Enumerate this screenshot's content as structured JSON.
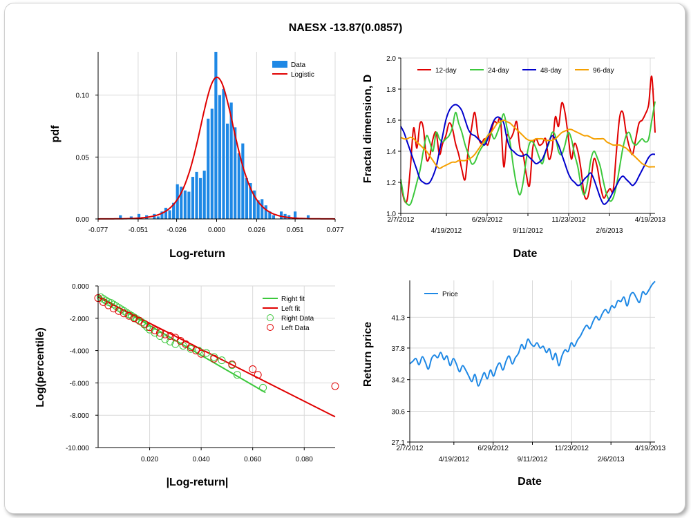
{
  "page": {
    "title": "NAESX -13.87(0.0857)"
  },
  "chart_data": [
    {
      "id": "histogram",
      "type": "bar",
      "xlabel": "Log-return",
      "ylabel": "pdf",
      "xlim": [
        -0.077,
        0.077
      ],
      "ylim": [
        0,
        0.135
      ],
      "xticks": [
        -0.077,
        -0.051,
        -0.026,
        0.0,
        0.026,
        0.051,
        0.077
      ],
      "xtick_labels": [
        "-0.077",
        "-0.051",
        "-0.026",
        "0.000",
        "0.026",
        "0.051",
        "0.077"
      ],
      "yticks": [
        0,
        0.05,
        0.1
      ],
      "ytick_labels": [
        "0.00",
        "0.05",
        "0.10"
      ],
      "grid": true,
      "legend_position": "top-right",
      "legend": [
        "Data",
        "Logistic"
      ],
      "colors": {
        "bars": "#1e88e5",
        "fit": "#e00000"
      },
      "bin_width": 0.0024,
      "bins": [
        [
          -0.0625,
          0.003
        ],
        [
          -0.0555,
          0.002
        ],
        [
          -0.0505,
          0.004
        ],
        [
          -0.0455,
          0.003
        ],
        [
          -0.0405,
          0.004
        ],
        [
          -0.038,
          0.002
        ],
        [
          -0.0355,
          0.006
        ],
        [
          -0.033,
          0.009
        ],
        [
          -0.0305,
          0.007
        ],
        [
          -0.028,
          0.013
        ],
        [
          -0.0255,
          0.028
        ],
        [
          -0.023,
          0.026
        ],
        [
          -0.0205,
          0.023
        ],
        [
          -0.018,
          0.022
        ],
        [
          -0.0155,
          0.034
        ],
        [
          -0.013,
          0.038
        ],
        [
          -0.0105,
          0.033
        ],
        [
          -0.008,
          0.039
        ],
        [
          -0.0055,
          0.081
        ],
        [
          -0.003,
          0.089
        ],
        [
          -0.0005,
          0.135
        ],
        [
          0.002,
          0.1
        ],
        [
          0.0045,
          0.105
        ],
        [
          0.007,
          0.077
        ],
        [
          0.0095,
          0.094
        ],
        [
          0.012,
          0.074
        ],
        [
          0.0145,
          0.053
        ],
        [
          0.017,
          0.061
        ],
        [
          0.0195,
          0.033
        ],
        [
          0.022,
          0.029
        ],
        [
          0.0245,
          0.023
        ],
        [
          0.027,
          0.015
        ],
        [
          0.0295,
          0.016
        ],
        [
          0.032,
          0.011
        ],
        [
          0.0345,
          0.006
        ],
        [
          0.037,
          0.003
        ],
        [
          0.042,
          0.006
        ],
        [
          0.0445,
          0.004
        ],
        [
          0.047,
          0.003
        ],
        [
          0.051,
          0.006
        ],
        [
          0.0595,
          0.003
        ]
      ],
      "fit": {
        "mu": 0.0002,
        "s": 0.0078
      }
    },
    {
      "id": "fractal",
      "type": "line",
      "xlabel": "Date",
      "ylabel": "Fractal dimension, D",
      "ylim": [
        1.0,
        2.0
      ],
      "yticks": [
        1.0,
        1.2,
        1.4,
        1.6,
        1.8,
        2.0
      ],
      "ytick_labels": [
        "1.0",
        "1.2",
        "1.4",
        "1.6",
        "1.8",
        "2.0"
      ],
      "xtick_labels": [
        "2/7/2012",
        "4/19/2012",
        "6/29/2012",
        "9/11/2012",
        "11/23/2012",
        "2/6/2013",
        "4/19/2013"
      ],
      "grid": true,
      "legend_position": "top-left",
      "series": [
        {
          "name": "12-day",
          "color": "#e00000",
          "values": [
            1.2,
            1.09,
            1.09,
            1.3,
            1.55,
            1.42,
            1.58,
            1.55,
            1.35,
            1.37,
            1.48,
            1.52,
            1.38,
            1.45,
            1.5,
            1.58,
            1.55,
            1.45,
            1.38,
            1.28,
            1.22,
            1.42,
            1.55,
            1.65,
            1.5,
            1.45,
            1.48,
            1.44,
            1.52,
            1.59,
            1.58,
            1.6,
            1.3,
            1.5,
            1.48,
            1.52,
            1.59,
            1.42,
            1.38,
            1.25,
            1.18,
            1.42,
            1.48,
            1.44,
            1.45,
            1.48,
            1.35,
            1.41,
            1.62,
            1.56,
            1.71,
            1.65,
            1.5,
            1.35,
            1.45,
            1.4,
            1.28,
            1.12,
            1.1,
            1.2,
            1.35,
            1.3,
            1.18,
            1.1,
            1.13,
            1.16,
            1.15,
            1.4,
            1.62,
            1.65,
            1.52,
            1.43,
            1.38,
            1.48,
            1.58,
            1.6,
            1.64,
            1.7,
            1.88,
            1.52
          ]
        },
        {
          "name": "24-day",
          "color": "#3cc83c",
          "values": [
            1.22,
            1.1,
            1.06,
            1.06,
            1.12,
            1.2,
            1.28,
            1.4,
            1.5,
            1.46,
            1.4,
            1.52,
            1.48,
            1.46,
            1.48,
            1.5,
            1.55,
            1.65,
            1.58,
            1.52,
            1.44,
            1.38,
            1.32,
            1.33,
            1.38,
            1.42,
            1.45,
            1.5,
            1.52,
            1.48,
            1.52,
            1.58,
            1.64,
            1.55,
            1.45,
            1.3,
            1.18,
            1.12,
            1.2,
            1.35,
            1.45,
            1.46,
            1.42,
            1.36,
            1.32,
            1.4,
            1.45,
            1.52,
            1.5,
            1.4,
            1.38,
            1.44,
            1.52,
            1.48,
            1.38,
            1.3,
            1.18,
            1.12,
            1.2,
            1.34,
            1.4,
            1.36,
            1.3,
            1.2,
            1.12,
            1.08,
            1.1,
            1.18,
            1.3,
            1.42,
            1.5,
            1.52,
            1.46,
            1.44,
            1.46,
            1.48,
            1.46,
            1.48,
            1.6,
            1.72
          ]
        },
        {
          "name": "48-day",
          "color": "#0000cc",
          "values": [
            1.56,
            1.52,
            1.46,
            1.4,
            1.34,
            1.28,
            1.22,
            1.2,
            1.19,
            1.2,
            1.24,
            1.3,
            1.4,
            1.5,
            1.6,
            1.66,
            1.69,
            1.7,
            1.69,
            1.66,
            1.6,
            1.54,
            1.51,
            1.5,
            1.48,
            1.46,
            1.44,
            1.48,
            1.55,
            1.6,
            1.62,
            1.61,
            1.58,
            1.48,
            1.42,
            1.4,
            1.38,
            1.37,
            1.37,
            1.38,
            1.36,
            1.34,
            1.32,
            1.33,
            1.35,
            1.4,
            1.46,
            1.5,
            1.48,
            1.44,
            1.38,
            1.32,
            1.26,
            1.22,
            1.2,
            1.18,
            1.19,
            1.22,
            1.24,
            1.26,
            1.22,
            1.16,
            1.1,
            1.06,
            1.07,
            1.1,
            1.14,
            1.18,
            1.22,
            1.24,
            1.22,
            1.2,
            1.18,
            1.2,
            1.24,
            1.28,
            1.32,
            1.36,
            1.38,
            1.38
          ]
        },
        {
          "name": "96-day",
          "color": "#f5a000",
          "values": [
            1.49,
            1.48,
            1.48,
            1.49,
            1.48,
            1.46,
            1.44,
            1.42,
            1.4,
            1.37,
            1.34,
            1.31,
            1.29,
            1.3,
            1.31,
            1.32,
            1.33,
            1.33,
            1.34,
            1.34,
            1.34,
            1.35,
            1.36,
            1.38,
            1.41,
            1.44,
            1.47,
            1.5,
            1.52,
            1.55,
            1.58,
            1.59,
            1.6,
            1.59,
            1.58,
            1.56,
            1.54,
            1.52,
            1.5,
            1.48,
            1.47,
            1.47,
            1.48,
            1.48,
            1.48,
            1.47,
            1.47,
            1.47,
            1.48,
            1.5,
            1.52,
            1.53,
            1.54,
            1.54,
            1.53,
            1.52,
            1.51,
            1.5,
            1.5,
            1.49,
            1.48,
            1.48,
            1.48,
            1.48,
            1.46,
            1.45,
            1.44,
            1.44,
            1.44,
            1.43,
            1.42,
            1.4,
            1.38,
            1.36,
            1.34,
            1.32,
            1.31,
            1.3,
            1.3,
            1.3
          ]
        }
      ]
    },
    {
      "id": "tail",
      "type": "scatter",
      "xlabel": "|Log-return|",
      "ylabel": "Log(percentile)",
      "xlim": [
        0,
        0.092
      ],
      "ylim": [
        -10,
        0
      ],
      "xticks": [
        0.02,
        0.04,
        0.06,
        0.08
      ],
      "xtick_labels": [
        "0.020",
        "0.040",
        "0.060",
        "0.080"
      ],
      "yticks": [
        0,
        -2,
        -4,
        -6,
        -8,
        -10
      ],
      "ytick_labels": [
        "0.000",
        "-2.000",
        "-4.000",
        "-6.000",
        "-8.000",
        "-10.000"
      ],
      "grid": true,
      "legend_position": "top-right",
      "series": [
        {
          "name": "Right fit",
          "kind": "line",
          "color": "#3cc83c",
          "x": [
            0,
            0.065
          ],
          "y": [
            -0.6,
            -6.6
          ]
        },
        {
          "name": "Left fit",
          "kind": "line",
          "color": "#e00000",
          "x": [
            0,
            0.092
          ],
          "y": [
            -0.7,
            -8.1
          ]
        },
        {
          "name": "Right Data",
          "kind": "scatter",
          "color": "#3cc83c",
          "x": [
            0.001,
            0.002,
            0.003,
            0.004,
            0.005,
            0.006,
            0.007,
            0.008,
            0.009,
            0.01,
            0.011,
            0.012,
            0.013,
            0.014,
            0.015,
            0.016,
            0.017,
            0.018,
            0.019,
            0.02,
            0.022,
            0.024,
            0.026,
            0.028,
            0.03,
            0.033,
            0.036,
            0.039,
            0.042,
            0.045,
            0.048,
            0.052,
            0.054,
            0.064
          ],
          "y": [
            -0.7,
            -0.8,
            -0.9,
            -1.0,
            -1.05,
            -1.15,
            -1.25,
            -1.35,
            -1.45,
            -1.55,
            -1.65,
            -1.75,
            -1.85,
            -1.95,
            -2.05,
            -2.15,
            -2.25,
            -2.4,
            -2.55,
            -2.7,
            -2.9,
            -3.1,
            -3.3,
            -3.45,
            -3.6,
            -3.7,
            -3.9,
            -4.0,
            -4.15,
            -4.4,
            -4.6,
            -4.9,
            -5.5,
            -6.3
          ]
        },
        {
          "name": "Left Data",
          "kind": "scatter",
          "color": "#e00000",
          "x": [
            0.0,
            0.002,
            0.004,
            0.006,
            0.008,
            0.01,
            0.012,
            0.014,
            0.016,
            0.018,
            0.02,
            0.022,
            0.024,
            0.026,
            0.028,
            0.03,
            0.032,
            0.034,
            0.036,
            0.038,
            0.04,
            0.045,
            0.052,
            0.06,
            0.062,
            0.092
          ],
          "y": [
            -0.75,
            -1.0,
            -1.2,
            -1.4,
            -1.55,
            -1.7,
            -1.85,
            -2.0,
            -2.15,
            -2.35,
            -2.55,
            -2.75,
            -2.9,
            -3.0,
            -3.1,
            -3.2,
            -3.4,
            -3.6,
            -3.8,
            -4.0,
            -4.2,
            -4.5,
            -4.85,
            -5.15,
            -5.5,
            -6.2
          ]
        }
      ]
    },
    {
      "id": "price",
      "type": "line",
      "xlabel": "Date",
      "ylabel": "Return price",
      "ylim": [
        27.1,
        45.5
      ],
      "yticks": [
        27.1,
        30.6,
        34.2,
        37.8,
        41.3
      ],
      "ytick_labels": [
        "27.1",
        "30.6",
        "34.2",
        "37.8",
        "41.3"
      ],
      "xtick_labels": [
        "2/7/2012",
        "4/19/2012",
        "6/29/2012",
        "9/11/2012",
        "11/23/2012",
        "2/6/2013",
        "4/19/2013"
      ],
      "grid": true,
      "legend_position": "top-left",
      "series": [
        {
          "name": "Price",
          "color": "#1e88e5",
          "values": [
            36.0,
            36.3,
            36.6,
            35.9,
            36.8,
            36.2,
            35.4,
            36.6,
            37.0,
            36.7,
            37.3,
            36.5,
            36.9,
            35.8,
            36.6,
            36.0,
            35.1,
            35.8,
            35.3,
            34.6,
            34.0,
            34.8,
            33.5,
            34.2,
            35.0,
            34.3,
            35.3,
            34.6,
            35.6,
            36.1,
            35.3,
            36.3,
            36.9,
            36.0,
            36.7,
            37.2,
            38.2,
            37.7,
            38.8,
            38.3,
            38.0,
            38.4,
            37.8,
            38.0,
            37.3,
            37.7,
            36.5,
            37.2,
            35.8,
            36.9,
            37.6,
            37.4,
            38.4,
            38.0,
            38.7,
            39.2,
            39.9,
            40.4,
            40.0,
            40.8,
            41.4,
            41.0,
            41.7,
            42.2,
            41.8,
            42.6,
            42.4,
            43.2,
            43.1,
            43.6,
            42.6,
            43.8,
            44.1,
            43.5,
            43.0,
            44.2,
            43.9,
            44.4,
            45.0,
            45.4
          ]
        }
      ]
    }
  ]
}
